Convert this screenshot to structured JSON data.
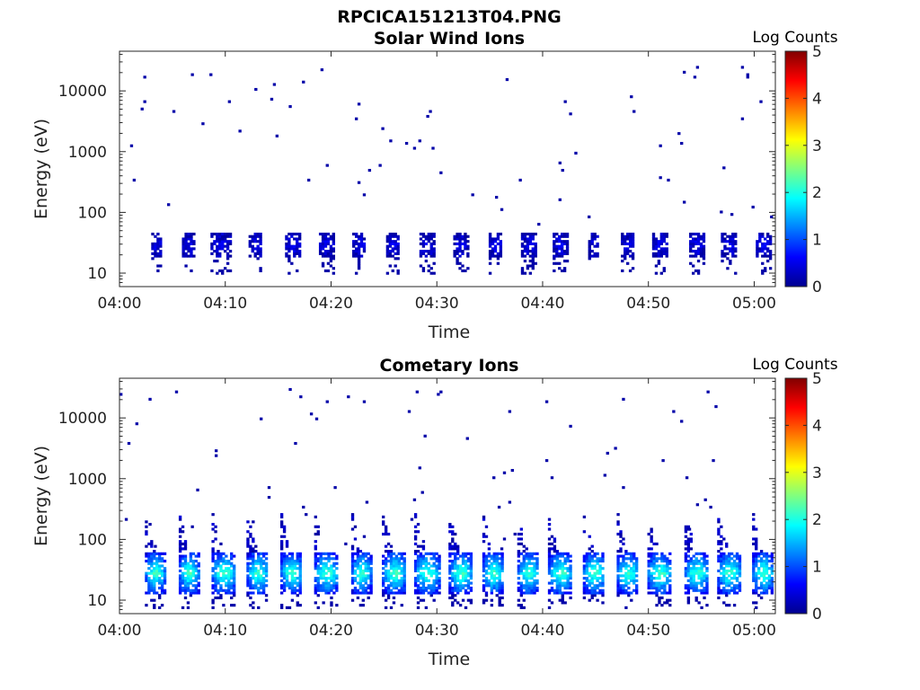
{
  "figure": {
    "title": "RPCICA151213T04.PNG"
  },
  "chart_data": [
    {
      "type": "heatmap",
      "title": "Solar Wind Ions",
      "xlabel": "Time",
      "ylabel": "Energy (eV)",
      "y_scale": "log",
      "xlim": [
        "04:00",
        "05:02"
      ],
      "ylim": [
        6,
        45000
      ],
      "x_ticks": [
        "04:00",
        "04:10",
        "04:20",
        "04:30",
        "04:40",
        "04:50",
        "05:00"
      ],
      "y_ticks": [
        "10",
        "100",
        "1000",
        "10000"
      ],
      "colorbar": {
        "label": "Log Counts",
        "range": [
          0,
          5
        ],
        "ticks": [
          "0",
          "1",
          "2",
          "3",
          "4",
          "5"
        ],
        "colormap": "jet"
      },
      "bursts": [
        {
          "t": 3.5,
          "w": 1.0
        },
        {
          "t": 6.5,
          "w": 1.2
        },
        {
          "t": 9.5,
          "w": 1.8
        },
        {
          "t": 12.8,
          "w": 1.2
        },
        {
          "t": 16.3,
          "w": 1.3
        },
        {
          "t": 19.5,
          "w": 1.3
        },
        {
          "t": 22.6,
          "w": 1.2
        },
        {
          "t": 25.8,
          "w": 1.2
        },
        {
          "t": 29.0,
          "w": 1.3
        },
        {
          "t": 32.2,
          "w": 1.3
        },
        {
          "t": 35.5,
          "w": 1.2
        },
        {
          "t": 38.6,
          "w": 1.3
        },
        {
          "t": 41.6,
          "w": 1.3
        },
        {
          "t": 44.8,
          "w": 1.0
        },
        {
          "t": 48.0,
          "w": 1.2
        },
        {
          "t": 51.0,
          "w": 1.3
        },
        {
          "t": 54.5,
          "w": 1.3
        },
        {
          "t": 57.5,
          "w": 1.3
        },
        {
          "t": 60.8,
          "w": 1.3
        }
      ],
      "core_energy_range": [
        17,
        45
      ],
      "peak_log_counts": 0.5
    },
    {
      "type": "heatmap",
      "title": "Cometary Ions",
      "xlabel": "Time",
      "ylabel": "Energy (eV)",
      "y_scale": "log",
      "xlim": [
        "04:00",
        "05:02"
      ],
      "ylim": [
        6,
        45000
      ],
      "x_ticks": [
        "04:00",
        "04:10",
        "04:20",
        "04:30",
        "04:40",
        "04:50",
        "05:00"
      ],
      "y_ticks": [
        "10",
        "100",
        "1000",
        "10000"
      ],
      "colorbar": {
        "label": "Log Counts",
        "range": [
          0,
          5
        ],
        "ticks": [
          "0",
          "1",
          "2",
          "3",
          "4",
          "5"
        ],
        "colormap": "jet"
      },
      "bursts": [
        {
          "t": 3.3,
          "w": 1.8
        },
        {
          "t": 6.5,
          "w": 1.8
        },
        {
          "t": 9.8,
          "w": 2.2
        },
        {
          "t": 13.0,
          "w": 2.0
        },
        {
          "t": 16.2,
          "w": 2.0
        },
        {
          "t": 19.5,
          "w": 2.2
        },
        {
          "t": 22.8,
          "w": 1.8
        },
        {
          "t": 25.9,
          "w": 2.2
        },
        {
          "t": 29.0,
          "w": 2.3
        },
        {
          "t": 32.2,
          "w": 2.2
        },
        {
          "t": 35.3,
          "w": 2.0
        },
        {
          "t": 38.6,
          "w": 2.0
        },
        {
          "t": 41.6,
          "w": 2.2
        },
        {
          "t": 44.8,
          "w": 2.0
        },
        {
          "t": 48.0,
          "w": 2.0
        },
        {
          "t": 51.0,
          "w": 2.2
        },
        {
          "t": 54.5,
          "w": 2.2
        },
        {
          "t": 57.6,
          "w": 2.2
        },
        {
          "t": 60.8,
          "w": 2.0
        }
      ],
      "core_energy_range": [
        12,
        60
      ],
      "plume_energy_max": 250,
      "peak_log_counts": 2.0
    }
  ]
}
